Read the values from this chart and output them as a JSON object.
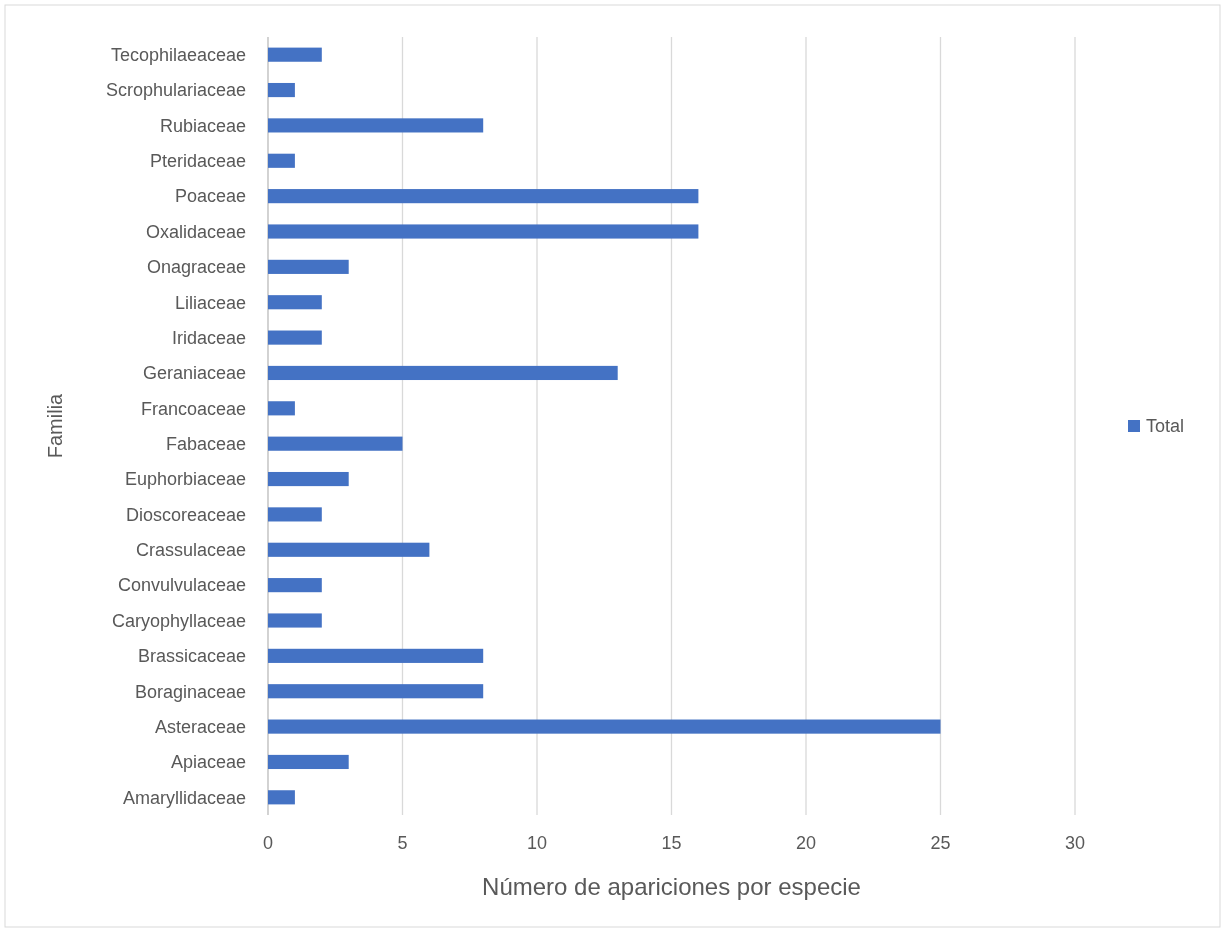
{
  "chart_data": {
    "type": "bar",
    "orientation": "horizontal",
    "xlabel": "Número de apariciones por especie",
    "ylabel": "Familia",
    "categories": [
      "Tecophilaeaceae",
      "Scrophulariaceae",
      "Rubiaceae",
      "Pteridaceae",
      "Poaceae",
      "Oxalidaceae",
      "Onagraceae",
      "Liliaceae",
      "Iridaceae",
      "Geraniaceae",
      "Francoaceae",
      "Fabaceae",
      "Euphorbiaceae",
      "Dioscoreaceae",
      "Crassulaceae",
      "Convulvulaceae",
      "Caryophyllaceae",
      "Brassicaceae",
      "Boraginaceae",
      "Asteraceae",
      "Apiaceae",
      "Amaryllidaceae"
    ],
    "series": [
      {
        "name": "Total",
        "color": "#4472c4",
        "values": [
          2,
          1,
          8,
          1,
          16,
          16,
          3,
          2,
          2,
          13,
          1,
          5,
          3,
          2,
          6,
          2,
          2,
          8,
          8,
          25,
          3,
          1
        ]
      }
    ],
    "xlim": [
      0,
      30
    ],
    "xticks": [
      0,
      5,
      10,
      15,
      20,
      25,
      30
    ],
    "grid": "x",
    "legend": "right"
  }
}
